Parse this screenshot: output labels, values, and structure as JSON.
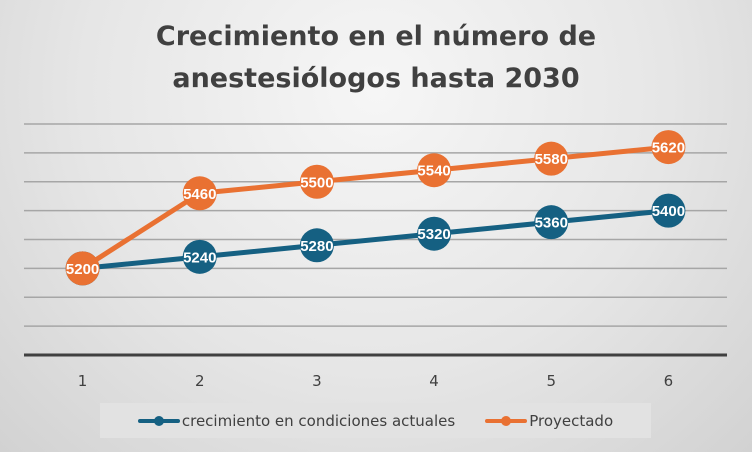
{
  "chart_data": {
    "type": "line",
    "title": "Crecimiento en el número de anestesiólogos hasta 2030",
    "title_lines": [
      "Crecimiento en el número de",
      "anestesiólogos hasta 2030"
    ],
    "xlabel": "",
    "ylabel": "",
    "x": [
      "1",
      "2",
      "3",
      "4",
      "5",
      "6"
    ],
    "ylim": [
      4900,
      5700
    ],
    "ytick_step": 100,
    "y_tick_labels_visible": false,
    "grid": true,
    "legend_position": "bottom",
    "series": [
      {
        "name": "crecimiento en condiciones actuales",
        "color": "#156082",
        "values": [
          5200,
          5240,
          5280,
          5320,
          5360,
          5400
        ],
        "data_labels": [
          "5200",
          "5240",
          "5280",
          "5320",
          "5360",
          "5400"
        ]
      },
      {
        "name": "Proyectado",
        "color": "#E97132",
        "values": [
          5200,
          5460,
          5500,
          5540,
          5580,
          5620
        ],
        "data_labels": [
          "5200",
          "5460",
          "5500",
          "5540",
          "5580",
          "5620"
        ]
      }
    ]
  }
}
